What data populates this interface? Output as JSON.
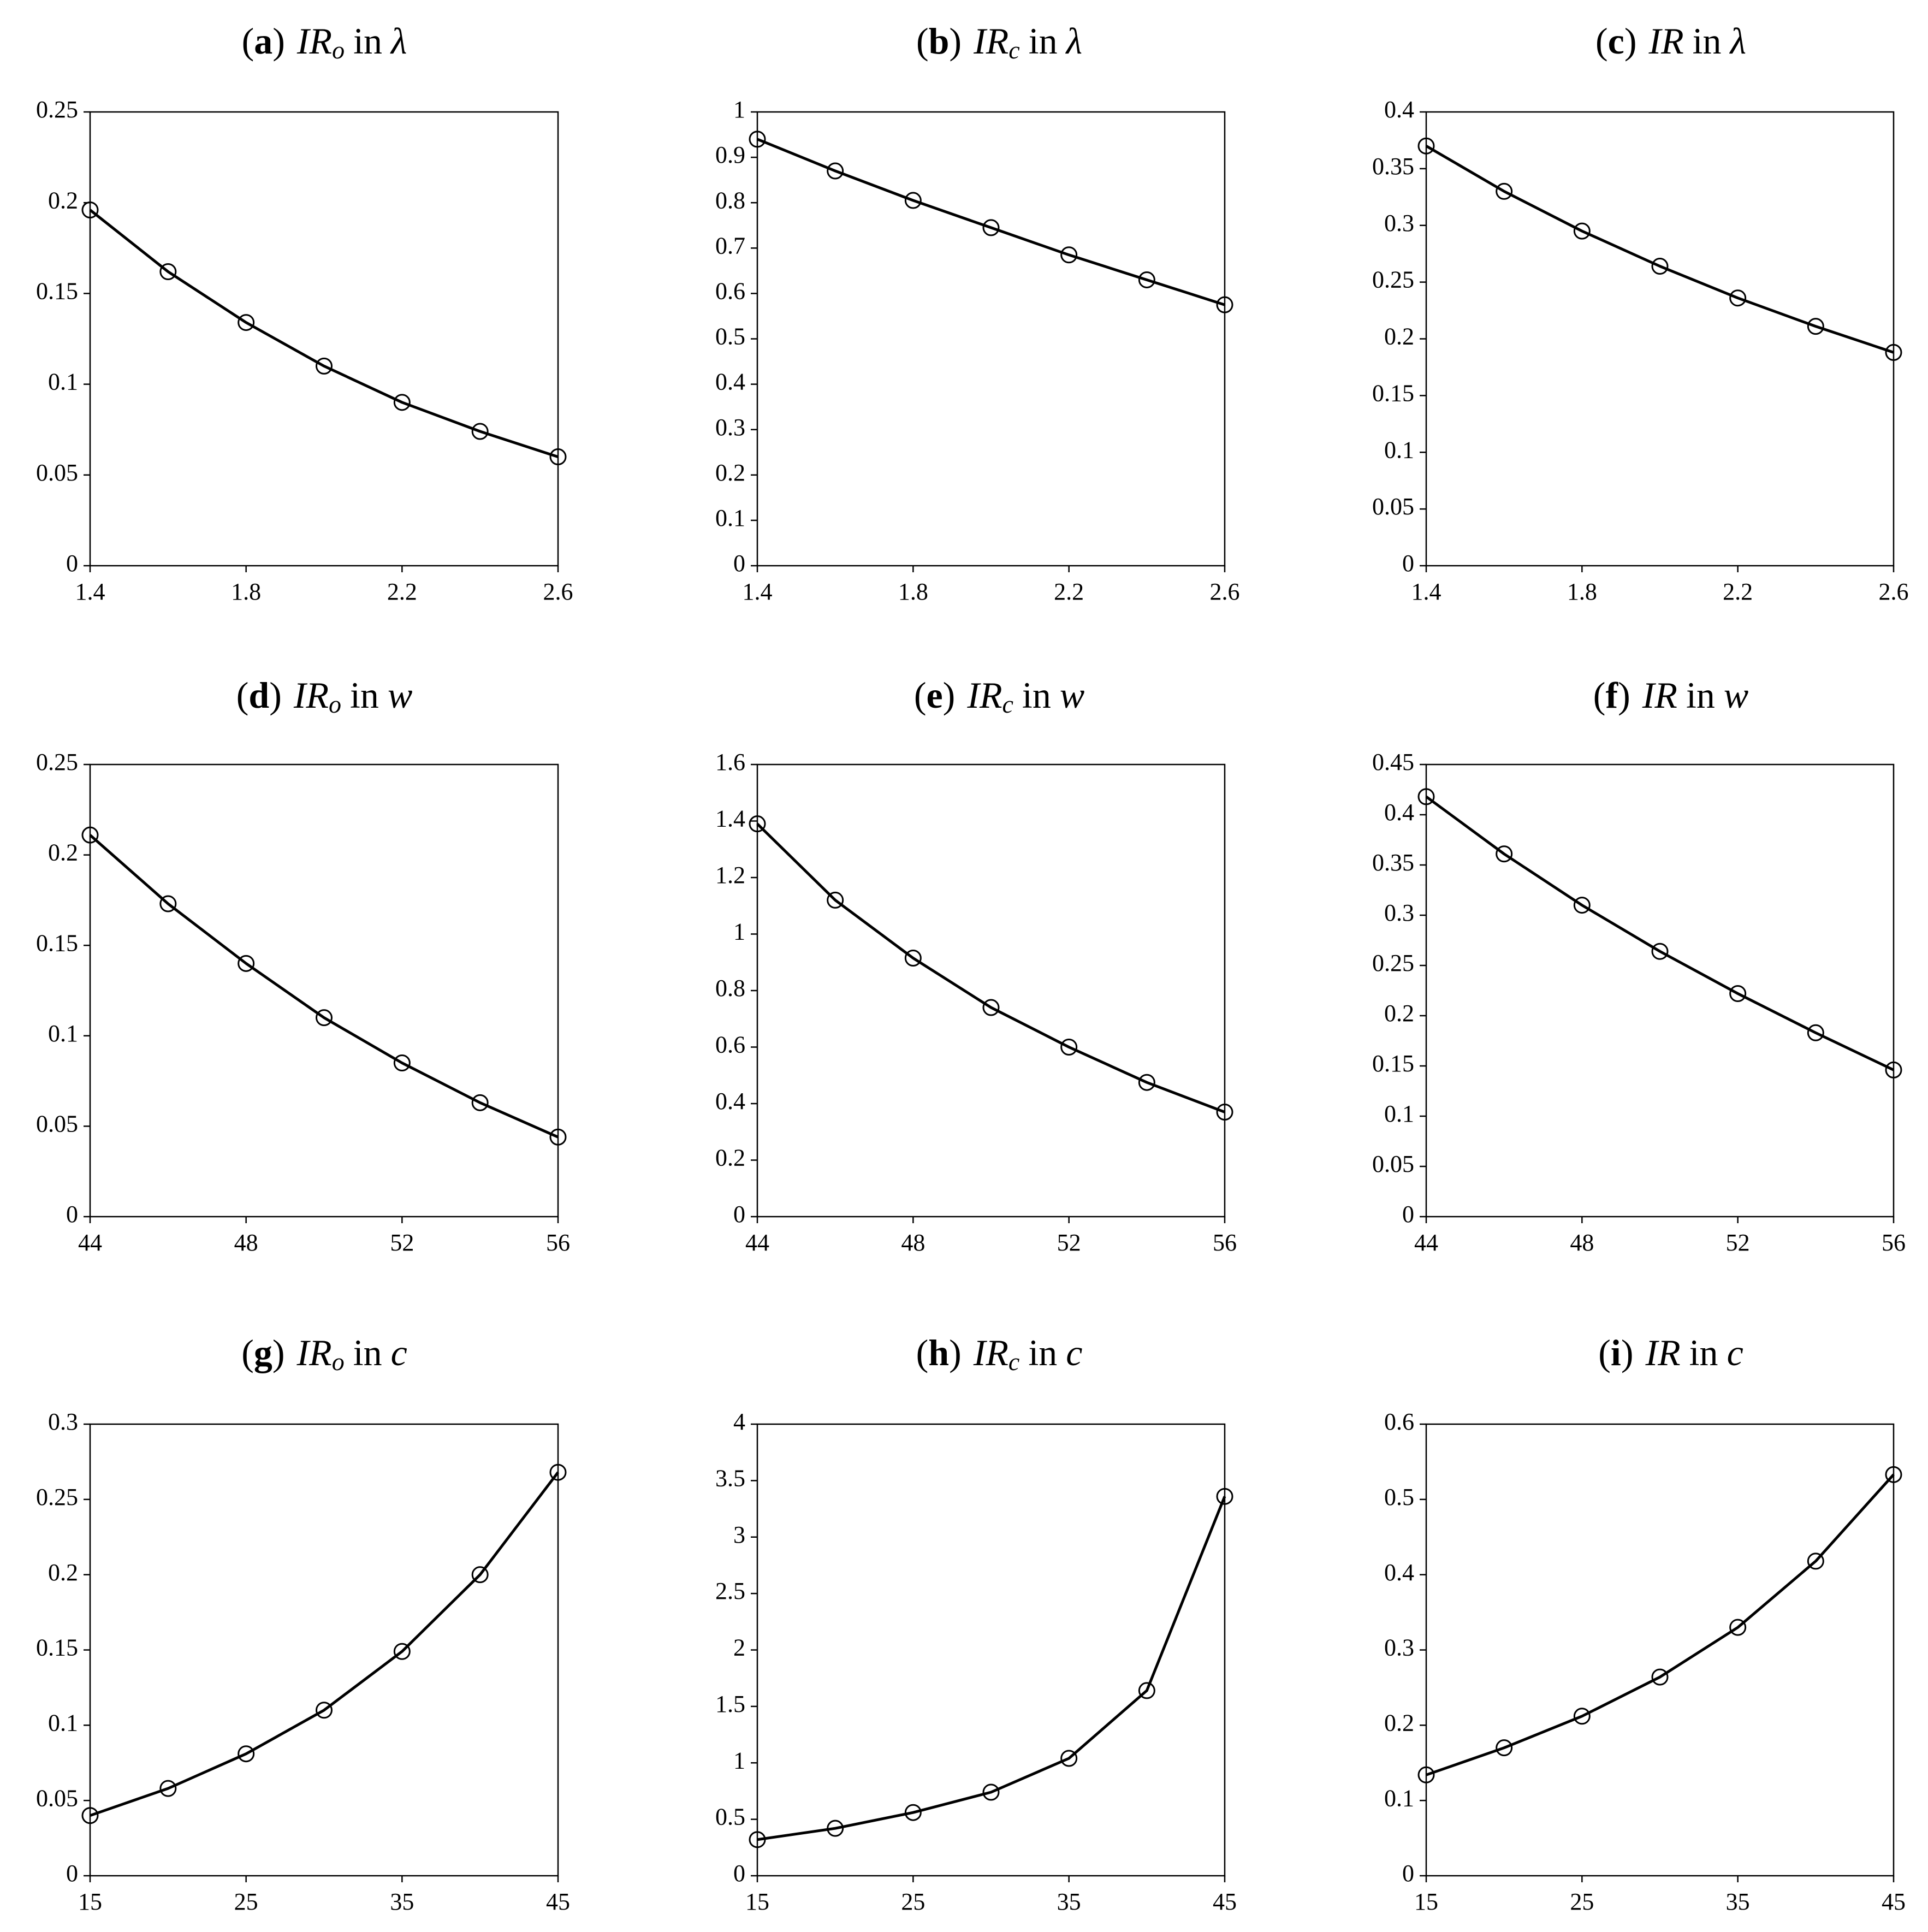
{
  "chart_data": [
    {
      "id": "a",
      "type": "line",
      "title": {
        "letter": "a",
        "open": "(",
        "close": ")",
        "quantity": "IR",
        "subscript": "o",
        "connector": "in",
        "variable": "λ"
      },
      "x": [
        1.4,
        1.6,
        1.8,
        2.0,
        2.2,
        2.4,
        2.6
      ],
      "values": [
        0.196,
        0.162,
        0.134,
        0.11,
        0.09,
        0.074,
        0.06
      ],
      "xlim": [
        1.4,
        2.6
      ],
      "ylim": [
        0,
        0.25
      ],
      "xticks": [
        "1.4",
        "1.8",
        "2.2",
        "2.6"
      ],
      "yticks": [
        "0",
        "0.05",
        "0.1",
        "0.15",
        "0.2",
        "0.25"
      ]
    },
    {
      "id": "b",
      "type": "line",
      "title": {
        "letter": "b",
        "open": "(",
        "close": ")",
        "quantity": "IR",
        "subscript": "c",
        "connector": "in",
        "variable": "λ"
      },
      "x": [
        1.4,
        1.6,
        1.8,
        2.0,
        2.2,
        2.4,
        2.6
      ],
      "values": [
        0.94,
        0.87,
        0.805,
        0.745,
        0.685,
        0.63,
        0.575
      ],
      "xlim": [
        1.4,
        2.6
      ],
      "ylim": [
        0,
        1
      ],
      "xticks": [
        "1.4",
        "1.8",
        "2.2",
        "2.6"
      ],
      "yticks": [
        "0",
        "0.1",
        "0.2",
        "0.3",
        "0.4",
        "0.5",
        "0.6",
        "0.7",
        "0.8",
        "0.9",
        "1"
      ]
    },
    {
      "id": "c",
      "type": "line",
      "title": {
        "letter": "c",
        "open": "(",
        "close": ")",
        "quantity": "IR",
        "subscript": "",
        "connector": "in",
        "variable": "λ"
      },
      "x": [
        1.4,
        1.6,
        1.8,
        2.0,
        2.2,
        2.4,
        2.6
      ],
      "values": [
        0.37,
        0.33,
        0.295,
        0.264,
        0.236,
        0.211,
        0.188
      ],
      "xlim": [
        1.4,
        2.6
      ],
      "ylim": [
        0,
        0.4
      ],
      "xticks": [
        "1.4",
        "1.8",
        "2.2",
        "2.6"
      ],
      "yticks": [
        "0",
        "0.05",
        "0.1",
        "0.15",
        "0.2",
        "0.25",
        "0.3",
        "0.35",
        "0.4"
      ]
    },
    {
      "id": "d",
      "type": "line",
      "title": {
        "letter": "d",
        "open": "(",
        "close": ")",
        "quantity": "IR",
        "subscript": "o",
        "connector": "in",
        "variable": "w"
      },
      "x": [
        44,
        46,
        48,
        50,
        52,
        54,
        56
      ],
      "values": [
        0.211,
        0.173,
        0.14,
        0.11,
        0.085,
        0.063,
        0.044
      ],
      "xlim": [
        44,
        56
      ],
      "ylim": [
        0,
        0.25
      ],
      "xticks": [
        "44",
        "48",
        "52",
        "56"
      ],
      "yticks": [
        "0",
        "0.05",
        "0.1",
        "0.15",
        "0.2",
        "0.25"
      ]
    },
    {
      "id": "e",
      "type": "line",
      "title": {
        "letter": "e",
        "open": "(",
        "close": ")",
        "quantity": "IR",
        "subscript": "c",
        "connector": "in",
        "variable": "w"
      },
      "x": [
        44,
        46,
        48,
        50,
        52,
        54,
        56
      ],
      "values": [
        1.39,
        1.12,
        0.915,
        0.74,
        0.6,
        0.475,
        0.37
      ],
      "xlim": [
        44,
        56
      ],
      "ylim": [
        0,
        1.6
      ],
      "xticks": [
        "44",
        "48",
        "52",
        "56"
      ],
      "yticks": [
        "0",
        "0.2",
        "0.4",
        "0.6",
        "0.8",
        "1",
        "1.2",
        "1.4",
        "1.6"
      ]
    },
    {
      "id": "f",
      "type": "line",
      "title": {
        "letter": "f",
        "open": "(",
        "close": ")",
        "quantity": "IR",
        "subscript": "",
        "connector": "in",
        "variable": "w"
      },
      "x": [
        44,
        46,
        48,
        50,
        52,
        54,
        56
      ],
      "values": [
        0.418,
        0.361,
        0.31,
        0.264,
        0.222,
        0.183,
        0.146
      ],
      "xlim": [
        44,
        56
      ],
      "ylim": [
        0,
        0.45
      ],
      "xticks": [
        "44",
        "48",
        "52",
        "56"
      ],
      "yticks": [
        "0",
        "0.05",
        "0.1",
        "0.15",
        "0.2",
        "0.25",
        "0.3",
        "0.35",
        "0.4",
        "0.45"
      ]
    },
    {
      "id": "g",
      "type": "line",
      "title": {
        "letter": "g",
        "open": "(",
        "close": ")",
        "quantity": "IR",
        "subscript": "o",
        "connector": "in",
        "variable": "c"
      },
      "x": [
        15,
        20,
        25,
        30,
        35,
        40,
        45
      ],
      "values": [
        0.04,
        0.058,
        0.081,
        0.11,
        0.149,
        0.2,
        0.268
      ],
      "xlim": [
        15,
        45
      ],
      "ylim": [
        0,
        0.3
      ],
      "xticks": [
        "15",
        "25",
        "35",
        "45"
      ],
      "yticks": [
        "0",
        "0.05",
        "0.1",
        "0.15",
        "0.2",
        "0.25",
        "0.3"
      ]
    },
    {
      "id": "h",
      "type": "line",
      "title": {
        "letter": "h",
        "open": "(",
        "close": ")",
        "quantity": "IR",
        "subscript": "c",
        "connector": "in",
        "variable": "c"
      },
      "x": [
        15,
        20,
        25,
        30,
        35,
        40,
        45
      ],
      "values": [
        0.32,
        0.42,
        0.56,
        0.74,
        1.04,
        1.64,
        3.36
      ],
      "xlim": [
        15,
        45
      ],
      "ylim": [
        0,
        4
      ],
      "xticks": [
        "15",
        "25",
        "35",
        "45"
      ],
      "yticks": [
        "0",
        "0.5",
        "1",
        "1.5",
        "2",
        "2.5",
        "3",
        "3.5",
        "4"
      ]
    },
    {
      "id": "i",
      "type": "line",
      "title": {
        "letter": "i",
        "open": "(",
        "close": ")",
        "quantity": "IR",
        "subscript": "",
        "connector": "in",
        "variable": "c"
      },
      "x": [
        15,
        20,
        25,
        30,
        35,
        40,
        45
      ],
      "values": [
        0.134,
        0.17,
        0.212,
        0.264,
        0.33,
        0.418,
        0.533
      ],
      "xlim": [
        15,
        45
      ],
      "ylim": [
        0,
        0.6
      ],
      "xticks": [
        "15",
        "25",
        "35",
        "45"
      ],
      "yticks": [
        "0",
        "0.1",
        "0.2",
        "0.3",
        "0.4",
        "0.5",
        "0.6"
      ]
    }
  ]
}
